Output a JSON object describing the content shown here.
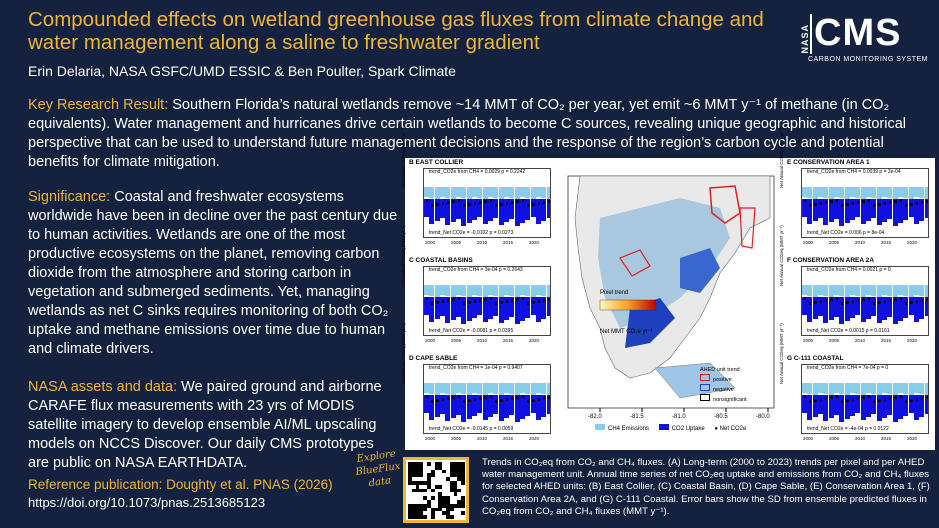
{
  "title": "Compounded effects on wetland greenhouse gas fluxes from climate change and water management along a saline to freshwater gradient",
  "authors": "Erin Delaria, NASA GSFC/UMD ESSIC & Ben Poulter, Spark Climate",
  "logo": {
    "nasa": "NASA",
    "cms": "CMS",
    "subtitle": "CARBON MONITORING SYSTEM"
  },
  "key_result": {
    "label": "Key Research Result:",
    "text": " Southern Florida’s natural wetlands remove ~14 MMT of CO₂ per year, yet emit ~6 MMT y⁻¹ of methane (in CO₂ equivalents). Water management and hurricanes drive certain wetlands to become C sources, revealing unique geographic and historical perspective that can be used to understand future management decisions and the response of the region’s carbon cycle and potential benefits for climate mitigation."
  },
  "significance": {
    "label": "Significance:",
    "text": " Coastal and freshwater ecosystems worldwide have been in decline over the past century due to human activities. Wetlands are one of the most productive ecosystems on the planet, removing carbon dioxide from the atmosphere and storing carbon in vegetation and submerged sediments. Yet, managing wetlands as net C sinks requires monitoring of both CO₂ uptake and methane emissions over time due to human and climate drivers."
  },
  "assets": {
    "label": "NASA assets and data:",
    "text": " We paired ground and airborne CARAFE flux measurements with 23 yrs of MODIS satellite imagery to develop ensemble AI/ML upscaling models on NCCS Discover. Our daily CMS prototypes are public on NASA EARTHDATA."
  },
  "reference": {
    "label": "Reference publication: Doughty et al. PNAS (2026)",
    "doi": "https://doi.org/10.1073/pnas.2513685123"
  },
  "explore": "Explore BlueFlux data",
  "caption": "Trends in CO₂eq from CO₂ and CH₄ fluxes. (A) Long-term (2000 to 2023) trends per pixel and per AHED water management unit. Annual time series of net CO₂eq uptake and emissions from CO₂ and CH₄ fluxes for selected AHED units: (B) East Collier, (C) Coastal Basin, (D) Cape Sable, (E) Conservation Area 1, (F) Conservation Area 2A, and (G) C-111 Coastal. Error bars show the SD from ensemble predicted fluxes in CO₂eq from CO₂ and CH₄ fluxes (MMT y⁻¹).",
  "figure": {
    "panels": [
      {
        "id": "B",
        "name": "EAST COLLIER",
        "top_trend": "trend_CO2e from CH4 = 0.0029     p = 0.2242",
        "bottom_trend": "trend_Net CO2e = -0.0102   p = 0.0273"
      },
      {
        "id": "C",
        "name": "COASTAL BASINS",
        "top_trend": "trend_CO2e from CH4 = 3e-04    p = 0.2643",
        "bottom_trend": "trend_Net CO2e = -0.0081   p = 0.0395"
      },
      {
        "id": "D",
        "name": "CAPE SABLE",
        "top_trend": "trend_CO2e from CH4 = 1e-04    p = 0.9407",
        "bottom_trend": "trend_Net CO2e = -0.0145   p = 0.0059"
      },
      {
        "id": "E",
        "name": "CONSERVATION AREA 1",
        "top_trend": "trend_CO2e from CH4 = 0.0039    p = 2e-04",
        "bottom_trend": "trend_Net CO2e = 0.006   p = 8e-04"
      },
      {
        "id": "F",
        "name": "CONSERVATION AREA 2A",
        "top_trend": "trend_CO2e from CH4 = 0.0021    p = 0",
        "bottom_trend": "trend_Net CO2e = 0.0015   p = 0.0161"
      },
      {
        "id": "G",
        "name": "C-111 COASTAL",
        "top_trend": "trend_CO2e from CH4 = 7e-04    p = 0",
        "bottom_trend": "trend_Net CO2e = -4e-04   p = 0.0122"
      }
    ],
    "ylabel": "Net Annual CO2eq (MMT yr⁻¹)",
    "x_ticks": [
      "2000",
      "2005",
      "2010",
      "2015",
      "2020"
    ],
    "pixel_trend_label": "Pixel trend",
    "pixel_trend_units": "Net MMT CO₂e yr⁻¹",
    "ahed_legend": {
      "title": "AHED unit trend",
      "items": [
        "positive",
        "negative",
        "nonsignificant"
      ]
    },
    "lon_ticks": [
      "-82.0",
      "-81.5",
      "-81.0",
      "-80.5",
      "-80.0"
    ],
    "series_legend": [
      "CH4 Emissions",
      "CO2 Uptake",
      "Net CO2e"
    ],
    "colors": {
      "ch4": "#87ceeb",
      "co2": "#1010e0",
      "positive": "#e03020",
      "negative": "#2040d0"
    }
  }
}
